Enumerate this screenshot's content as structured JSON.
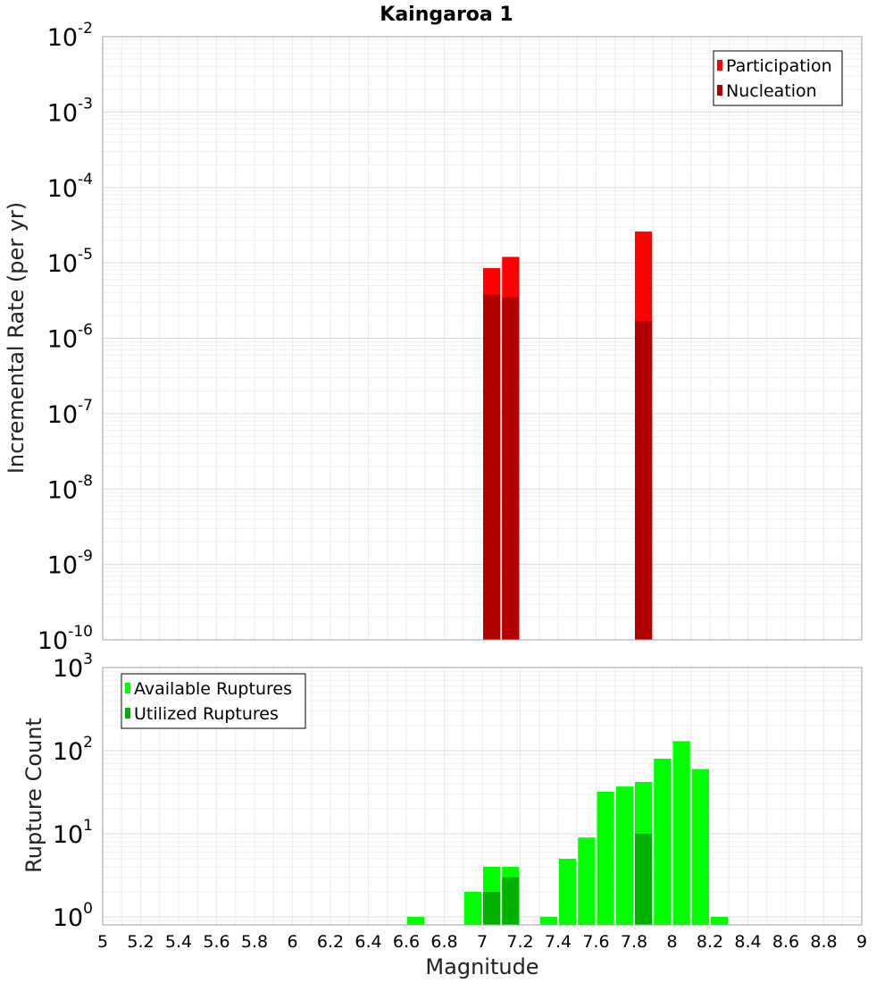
{
  "chart_data": [
    {
      "type": "bar",
      "scale": "log",
      "title": "Kaingaroa 1",
      "xlabel": "",
      "ylabel": "Incremental Rate (per yr)",
      "xlim": [
        5,
        9
      ],
      "ylim": [
        1e-10,
        0.01
      ],
      "y_tick_exponents": [
        -10,
        -9,
        -8,
        -7,
        -6,
        -5,
        -4,
        -3,
        -2
      ],
      "y_tick_base": "10",
      "grid": true,
      "legend_position": "top-right",
      "series": [
        {
          "name": "Participation",
          "color": "#ff0000",
          "points": [
            {
              "x": 7.05,
              "y": 8.5e-06
            },
            {
              "x": 7.15,
              "y": 1.2e-05
            },
            {
              "x": 7.85,
              "y": 2.6e-05
            }
          ]
        },
        {
          "name": "Nucleation",
          "color": "#b20000",
          "points": [
            {
              "x": 7.05,
              "y": 3.8e-06
            },
            {
              "x": 7.15,
              "y": 3.5e-06
            },
            {
              "x": 7.85,
              "y": 1.7e-06
            }
          ]
        }
      ]
    },
    {
      "type": "bar",
      "scale": "log",
      "title": "",
      "xlabel": "Magnitude",
      "ylabel": "Rupture Count",
      "xlim": [
        5,
        9
      ],
      "ylim": [
        0.8,
        1000
      ],
      "y_tick_exponents": [
        0,
        1,
        2,
        3
      ],
      "y_tick_base": "10",
      "x_ticks": [
        "5",
        "5.2",
        "5.4",
        "5.6",
        "5.8",
        "6",
        "6.2",
        "6.4",
        "6.6",
        "6.8",
        "7",
        "7.2",
        "7.4",
        "7.6",
        "7.8",
        "8",
        "8.2",
        "8.4",
        "8.6",
        "8.8",
        "9"
      ],
      "grid": true,
      "legend_position": "top-left",
      "series": [
        {
          "name": "Available Ruptures",
          "color": "#00ff00",
          "points": [
            {
              "x": 6.65,
              "y": 1
            },
            {
              "x": 6.95,
              "y": 2
            },
            {
              "x": 7.05,
              "y": 4
            },
            {
              "x": 7.15,
              "y": 4
            },
            {
              "x": 7.35,
              "y": 1
            },
            {
              "x": 7.45,
              "y": 5
            },
            {
              "x": 7.55,
              "y": 9
            },
            {
              "x": 7.65,
              "y": 32
            },
            {
              "x": 7.75,
              "y": 37
            },
            {
              "x": 7.85,
              "y": 42
            },
            {
              "x": 7.95,
              "y": 80
            },
            {
              "x": 8.05,
              "y": 130
            },
            {
              "x": 8.15,
              "y": 60
            },
            {
              "x": 8.25,
              "y": 1
            }
          ]
        },
        {
          "name": "Utilized Ruptures",
          "color": "#00b200",
          "points": [
            {
              "x": 7.05,
              "y": 2
            },
            {
              "x": 7.15,
              "y": 3
            },
            {
              "x": 7.85,
              "y": 10
            }
          ]
        }
      ]
    }
  ]
}
